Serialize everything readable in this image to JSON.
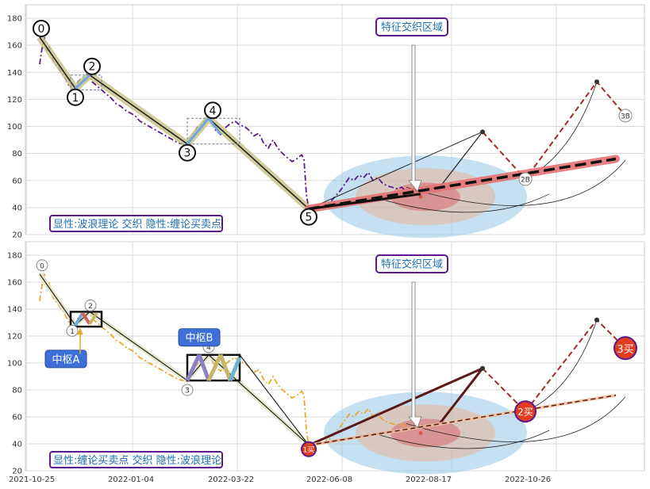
{
  "chart_data": [
    {
      "type": "line",
      "panel": "top",
      "ylim": [
        20,
        190
      ],
      "yticks": [
        20,
        40,
        60,
        80,
        100,
        120,
        140,
        160,
        180
      ],
      "x_tick_labels": [
        "2021-10-25",
        "2022-01-04",
        "2022-03-22",
        "2022-06-08",
        "2022-08-17",
        "2022-10-26"
      ],
      "grid": true,
      "annotation_box": "特征交织区域",
      "legend_box": "显性:波浪理论 交织 隐性:缠论买卖点",
      "wave_points": [
        {
          "label": "0",
          "x": 0,
          "y": 166
        },
        {
          "label": "1",
          "x": 7.5,
          "y": 128
        },
        {
          "label": "2",
          "x": 10.5,
          "y": 138
        },
        {
          "label": "3",
          "x": 31,
          "y": 87
        },
        {
          "label": "4",
          "x": 35.5,
          "y": 106
        },
        {
          "label": "5",
          "x": 56.5,
          "y": 39
        }
      ],
      "projection_points": [
        {
          "label": "",
          "x": 93,
          "y": 96
        },
        {
          "label": "2B",
          "x": 102,
          "y": 61
        },
        {
          "label": "",
          "x": 117,
          "y": 133
        },
        {
          "label": "3B",
          "x": 123,
          "y": 108
        }
      ],
      "trend_line": {
        "from": [
          56.5,
          39
        ],
        "to": [
          121,
          76
        ]
      },
      "price_series": [
        [
          0,
          146
        ],
        [
          0.5,
          158
        ],
        [
          1,
          166
        ],
        [
          1.5,
          155
        ],
        [
          2,
          159
        ],
        [
          2.5,
          152
        ],
        [
          3,
          147
        ],
        [
          4,
          143
        ],
        [
          5,
          138
        ],
        [
          6,
          131
        ],
        [
          7,
          127
        ],
        [
          7.5,
          128
        ],
        [
          8,
          133
        ],
        [
          9,
          136
        ],
        [
          10,
          139
        ],
        [
          10.5,
          138
        ],
        [
          11,
          133
        ],
        [
          12,
          130
        ],
        [
          13,
          127
        ],
        [
          14,
          124
        ],
        [
          15,
          121
        ],
        [
          16,
          117
        ],
        [
          17,
          115
        ],
        [
          18,
          112
        ],
        [
          19,
          110
        ],
        [
          20,
          108
        ],
        [
          21,
          104
        ],
        [
          22,
          102
        ],
        [
          23,
          100
        ],
        [
          24,
          98
        ],
        [
          25,
          96
        ],
        [
          26,
          94
        ],
        [
          27,
          92
        ],
        [
          28,
          90
        ],
        [
          29,
          88
        ],
        [
          30,
          87
        ],
        [
          31,
          87
        ],
        [
          32,
          93
        ],
        [
          33,
          99
        ],
        [
          34,
          102
        ],
        [
          35,
          105
        ],
        [
          35.5,
          106
        ],
        [
          36,
          103
        ],
        [
          37,
          97
        ],
        [
          38,
          94
        ],
        [
          39,
          99
        ],
        [
          40,
          102
        ],
        [
          41,
          104
        ],
        [
          42,
          101
        ],
        [
          43,
          100
        ],
        [
          44,
          97
        ],
        [
          45,
          93
        ],
        [
          46,
          95
        ],
        [
          47,
          88
        ],
        [
          48,
          84
        ],
        [
          49,
          90
        ],
        [
          50,
          84
        ],
        [
          51,
          80
        ],
        [
          52,
          77
        ],
        [
          53,
          74
        ],
        [
          54,
          76
        ],
        [
          55,
          79
        ],
        [
          55.5,
          76
        ],
        [
          56,
          50
        ],
        [
          56.5,
          39
        ],
        [
          57,
          39
        ],
        [
          58,
          41
        ],
        [
          59,
          40
        ],
        [
          60,
          42
        ],
        [
          61,
          44
        ],
        [
          62,
          48
        ],
        [
          63,
          52
        ],
        [
          64,
          57
        ],
        [
          65,
          62
        ],
        [
          66,
          60
        ],
        [
          67,
          64
        ],
        [
          68,
          62
        ],
        [
          69,
          66
        ],
        [
          70,
          60
        ],
        [
          71,
          62
        ],
        [
          72,
          58
        ],
        [
          73,
          56
        ],
        [
          74,
          55
        ],
        [
          75,
          54
        ],
        [
          76,
          55
        ],
        [
          77,
          52
        ]
      ]
    },
    {
      "type": "line",
      "panel": "bottom",
      "ylim": [
        20,
        190
      ],
      "yticks": [
        20,
        40,
        60,
        80,
        100,
        120,
        140,
        160,
        180
      ],
      "x_tick_labels": [
        "2021-10-25",
        "2022-01-04",
        "2022-03-22",
        "2022-06-08",
        "2022-08-17",
        "2022-10-26"
      ],
      "grid": true,
      "annotation_box": "特征交织区域",
      "legend_box": "显性:缠论买卖点 交织 隐性:波浪理论",
      "pivots": [
        {
          "label": "中枢A",
          "x_range": [
            6.5,
            13
          ],
          "y_range": [
            127,
            138
          ]
        },
        {
          "label": "中枢B",
          "x_range": [
            31,
            42
          ],
          "y_range": [
            87,
            106
          ]
        }
      ],
      "wave_points": [
        {
          "label": "0",
          "x": 0,
          "y": 166
        },
        {
          "label": "1",
          "x": 7.5,
          "y": 128
        },
        {
          "label": "2",
          "x": 10.5,
          "y": 138
        },
        {
          "label": "3",
          "x": 31,
          "y": 87
        },
        {
          "label": "4",
          "x": 35.5,
          "y": 106
        },
        {
          "label": "1买",
          "x": 56.5,
          "y": 39
        }
      ],
      "buy_points": [
        {
          "label": "1买",
          "x": 56.5,
          "y": 36
        },
        {
          "label": "2买",
          "x": 102,
          "y": 64
        },
        {
          "label": "3买",
          "x": 123,
          "y": 111
        }
      ],
      "projection_points": [
        {
          "x": 93,
          "y": 96
        },
        {
          "x": 102,
          "y": 64
        },
        {
          "x": 117,
          "y": 132
        }
      ],
      "trend_line": {
        "from": [
          56.5,
          39
        ],
        "to": [
          121,
          76
        ]
      }
    }
  ]
}
